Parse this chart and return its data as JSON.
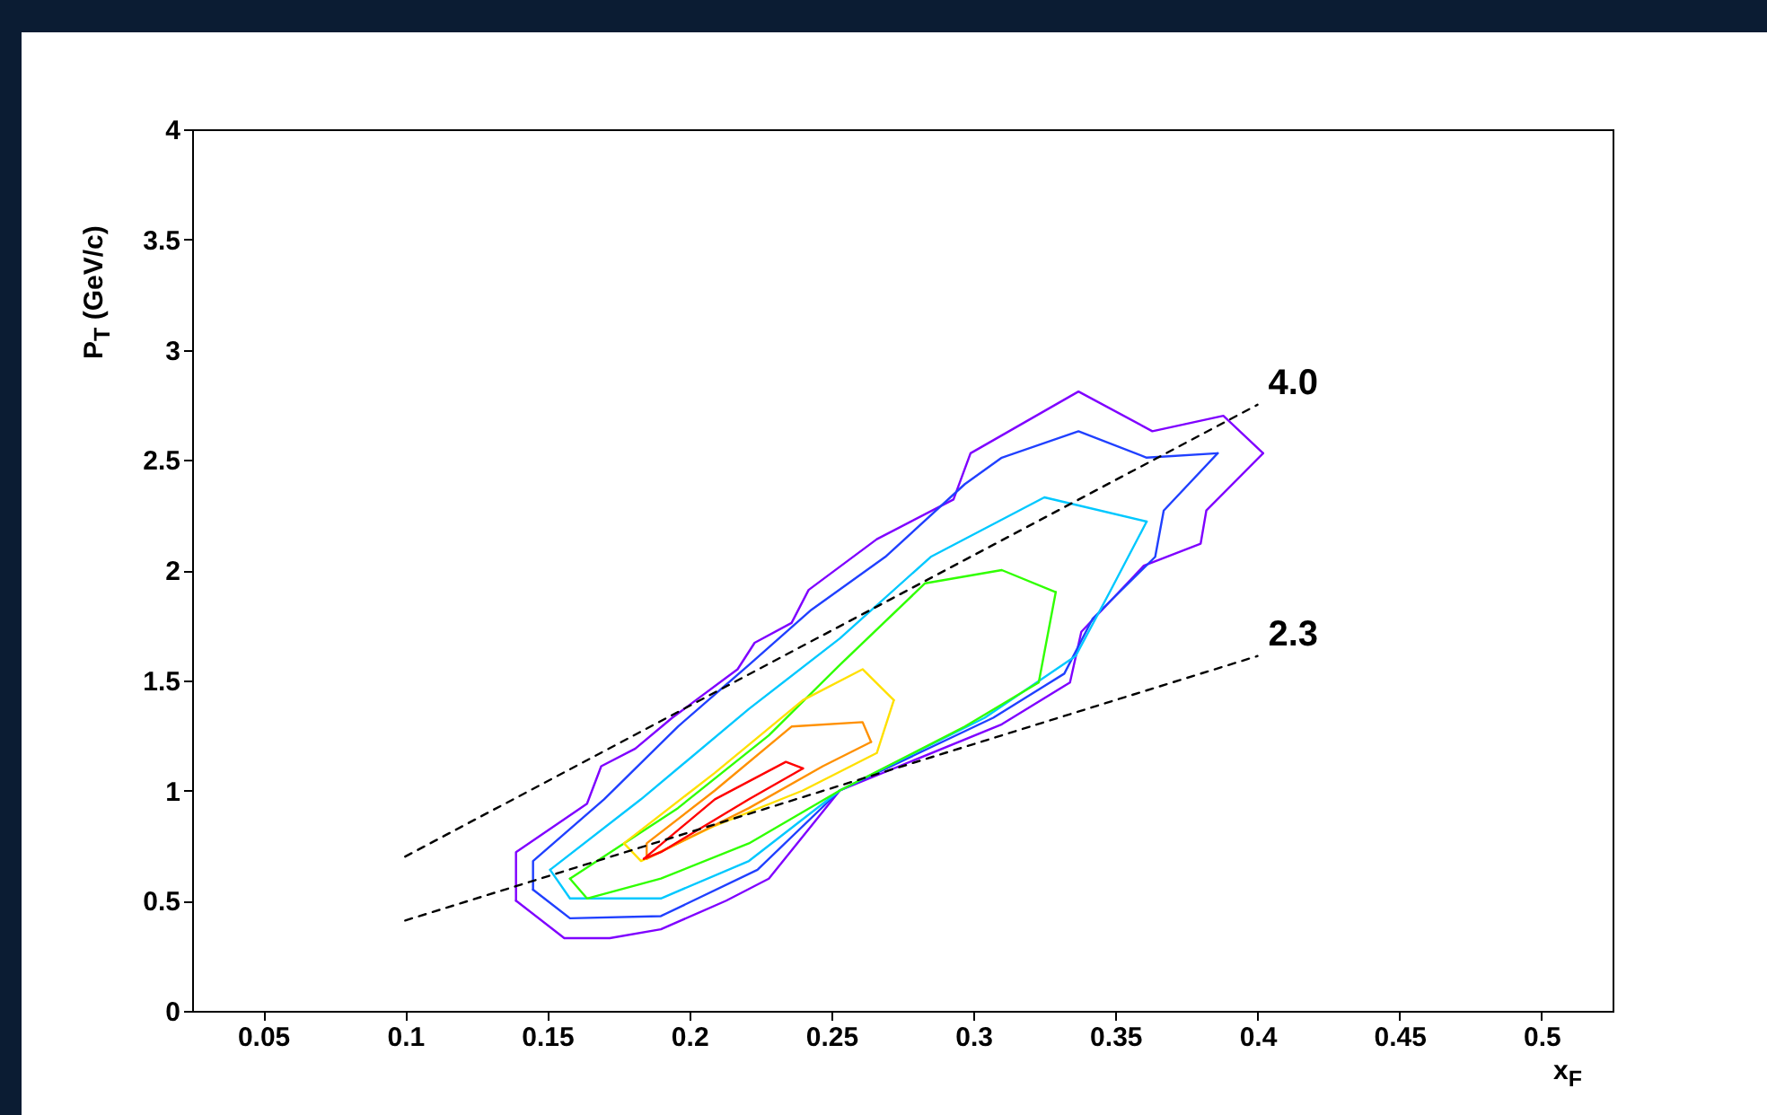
{
  "chart_data": {
    "type": "line",
    "xlabel": "x$_{F}$",
    "ylabel": "P$_{T}$ (GeV/c)",
    "xlim": [
      0.025,
      0.525
    ],
    "ylim": [
      0,
      4
    ],
    "xticks": [
      0.05,
      0.1,
      0.15,
      0.2,
      0.25,
      0.3,
      0.35,
      0.4,
      0.45,
      0.5
    ],
    "yticks": [
      0,
      0.5,
      1,
      1.5,
      2,
      2.5,
      3,
      3.5,
      4
    ],
    "grid": false,
    "series": [
      {
        "color": "#7f00ff",
        "line_style": "solid",
        "x": [
          0.139,
          0.139,
          0.164,
          0.169,
          0.181,
          0.194,
          0.217,
          0.223,
          0.236,
          0.242,
          0.266,
          0.293,
          0.299,
          0.337,
          0.363,
          0.388,
          0.402
        ],
        "values": [
          0.5,
          0.72,
          0.94,
          1.11,
          1.19,
          1.33,
          1.55,
          1.67,
          1.76,
          1.91,
          2.14,
          2.32,
          2.53,
          2.81,
          2.63,
          2.7,
          2.53
        ]
      },
      {
        "color": "#7f00ff",
        "line_style": "solid",
        "x": [
          0.139,
          0.156,
          0.172,
          0.19,
          0.213,
          0.228,
          0.253,
          0.31,
          0.334,
          0.338,
          0.36,
          0.38,
          0.382,
          0.402
        ],
        "values": [
          0.5,
          0.33,
          0.33,
          0.37,
          0.5,
          0.6,
          1.0,
          1.3,
          1.49,
          1.72,
          2.02,
          2.12,
          2.27,
          2.53
        ]
      },
      {
        "color": "#2040ff",
        "line_style": "solid",
        "x": [
          0.145,
          0.145,
          0.17,
          0.196,
          0.221,
          0.243,
          0.269,
          0.297,
          0.31,
          0.337,
          0.361,
          0.386
        ],
        "values": [
          0.55,
          0.68,
          0.96,
          1.29,
          1.57,
          1.82,
          2.06,
          2.39,
          2.51,
          2.63,
          2.51,
          2.53
        ]
      },
      {
        "color": "#2040ff",
        "line_style": "solid",
        "x": [
          0.145,
          0.158,
          0.19,
          0.224,
          0.253,
          0.307,
          0.332,
          0.342,
          0.364,
          0.367,
          0.386
        ],
        "values": [
          0.55,
          0.42,
          0.43,
          0.64,
          1.0,
          1.33,
          1.53,
          1.78,
          2.06,
          2.27,
          2.53
        ]
      },
      {
        "color": "#00c8ff",
        "line_style": "solid",
        "x": [
          0.151,
          0.183,
          0.221,
          0.253,
          0.285,
          0.325,
          0.361
        ],
        "values": [
          0.64,
          0.96,
          1.37,
          1.69,
          2.06,
          2.33,
          2.22
        ]
      },
      {
        "color": "#00c8ff",
        "line_style": "solid",
        "x": [
          0.151,
          0.158,
          0.19,
          0.221,
          0.253,
          0.304,
          0.336,
          0.348,
          0.361
        ],
        "values": [
          0.64,
          0.51,
          0.51,
          0.68,
          1.0,
          1.33,
          1.61,
          1.9,
          2.22
        ]
      },
      {
        "color": "#30ff00",
        "line_style": "solid",
        "x": [
          0.158,
          0.196,
          0.228,
          0.253,
          0.283,
          0.31,
          0.329
        ],
        "values": [
          0.6,
          0.92,
          1.25,
          1.57,
          1.94,
          2.0,
          1.9
        ]
      },
      {
        "color": "#30ff00",
        "line_style": "solid",
        "x": [
          0.158,
          0.164,
          0.19,
          0.221,
          0.253,
          0.297,
          0.323,
          0.329
        ],
        "values": [
          0.6,
          0.51,
          0.6,
          0.76,
          1.0,
          1.29,
          1.49,
          1.9
        ]
      },
      {
        "color": "#ffe000",
        "line_style": "solid",
        "x": [
          0.177,
          0.209,
          0.24,
          0.261,
          0.272
        ],
        "values": [
          0.76,
          1.08,
          1.41,
          1.55,
          1.41
        ]
      },
      {
        "color": "#ffe000",
        "line_style": "solid",
        "x": [
          0.177,
          0.183,
          0.209,
          0.24,
          0.266,
          0.272
        ],
        "values": [
          0.76,
          0.68,
          0.84,
          1.0,
          1.17,
          1.41
        ]
      },
      {
        "color": "#ff9000",
        "line_style": "solid",
        "x": [
          0.185,
          0.185,
          0.209,
          0.236,
          0.261,
          0.264
        ],
        "values": [
          0.69,
          0.76,
          1.0,
          1.29,
          1.31,
          1.22
        ]
      },
      {
        "color": "#ff9000",
        "line_style": "solid",
        "x": [
          0.185,
          0.196,
          0.221,
          0.247,
          0.264
        ],
        "values": [
          0.69,
          0.76,
          0.92,
          1.11,
          1.22
        ]
      },
      {
        "color": "#ff0000",
        "line_style": "solid",
        "x": [
          0.184,
          0.209,
          0.234,
          0.24
        ],
        "values": [
          0.69,
          0.96,
          1.13,
          1.1
        ]
      },
      {
        "color": "#ff0000",
        "line_style": "solid",
        "x": [
          0.184,
          0.19,
          0.221,
          0.24
        ],
        "values": [
          0.69,
          0.72,
          0.96,
          1.1
        ]
      },
      {
        "name": "4.0",
        "color": "#000000",
        "line_style": "dashed",
        "x": [
          0.1,
          0.4
        ],
        "values": [
          0.7,
          2.75
        ]
      },
      {
        "name": "2.3",
        "color": "#000000",
        "line_style": "dashed",
        "x": [
          0.1,
          0.4
        ],
        "values": [
          0.41,
          1.61
        ]
      }
    ]
  }
}
